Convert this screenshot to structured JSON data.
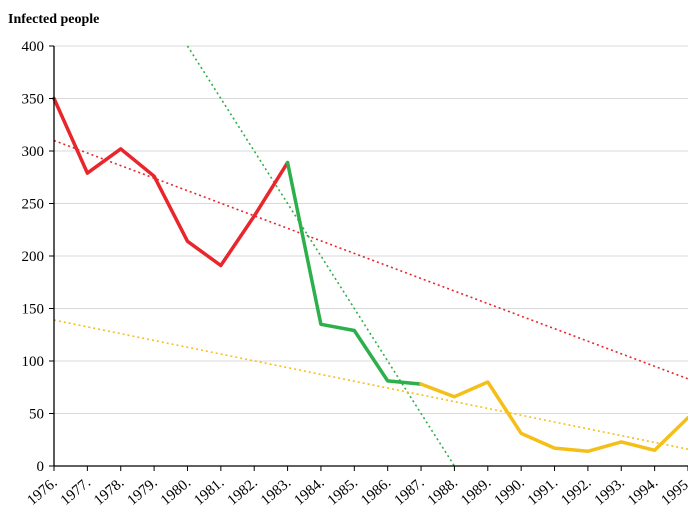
{
  "chart_data": {
    "type": "line",
    "ylabel": "Infected people",
    "xlabel": "",
    "title": "",
    "ylim": [
      0,
      400
    ],
    "yticks": [
      0,
      50,
      100,
      150,
      200,
      250,
      300,
      350,
      400
    ],
    "categories": [
      "1976.",
      "1977.",
      "1978.",
      "1979.",
      "1980.",
      "1981.",
      "1982.",
      "1983.",
      "1984.",
      "1985.",
      "1986.",
      "1987.",
      "1988.",
      "1989.",
      "1990.",
      "1991.",
      "1992.",
      "1993.",
      "1994.",
      "1995."
    ],
    "grid": true,
    "legend": "none",
    "series": [
      {
        "color": "#e8262c",
        "x": [
          "1976.",
          "1977.",
          "1978.",
          "1979.",
          "1980.",
          "1981.",
          "1982.",
          "1983."
        ],
        "values": [
          350,
          279,
          302,
          276,
          214,
          191,
          238,
          289
        ]
      },
      {
        "color": "#2db04b",
        "x": [
          "1983.",
          "1984.",
          "1985.",
          "1986.",
          "1987."
        ],
        "values": [
          289,
          135,
          129,
          81,
          78
        ]
      },
      {
        "color": "#f5bf1a",
        "x": [
          "1987.",
          "1988.",
          "1989.",
          "1990.",
          "1991.",
          "1992.",
          "1993.",
          "1994.",
          "1995."
        ],
        "values": [
          78,
          66,
          80,
          31,
          17,
          14,
          23,
          15,
          46
        ]
      }
    ],
    "trendlines": [
      {
        "color": "#e8262c",
        "from": [
          "1976.",
          310
        ],
        "to": [
          "1995.",
          83
        ]
      },
      {
        "color": "#2db04b",
        "from": [
          "1980.",
          400
        ],
        "to": [
          "1988.",
          0
        ]
      },
      {
        "color": "#f5bf1a",
        "from": [
          "1976.",
          139
        ],
        "to": [
          "1995.",
          16
        ]
      }
    ]
  }
}
